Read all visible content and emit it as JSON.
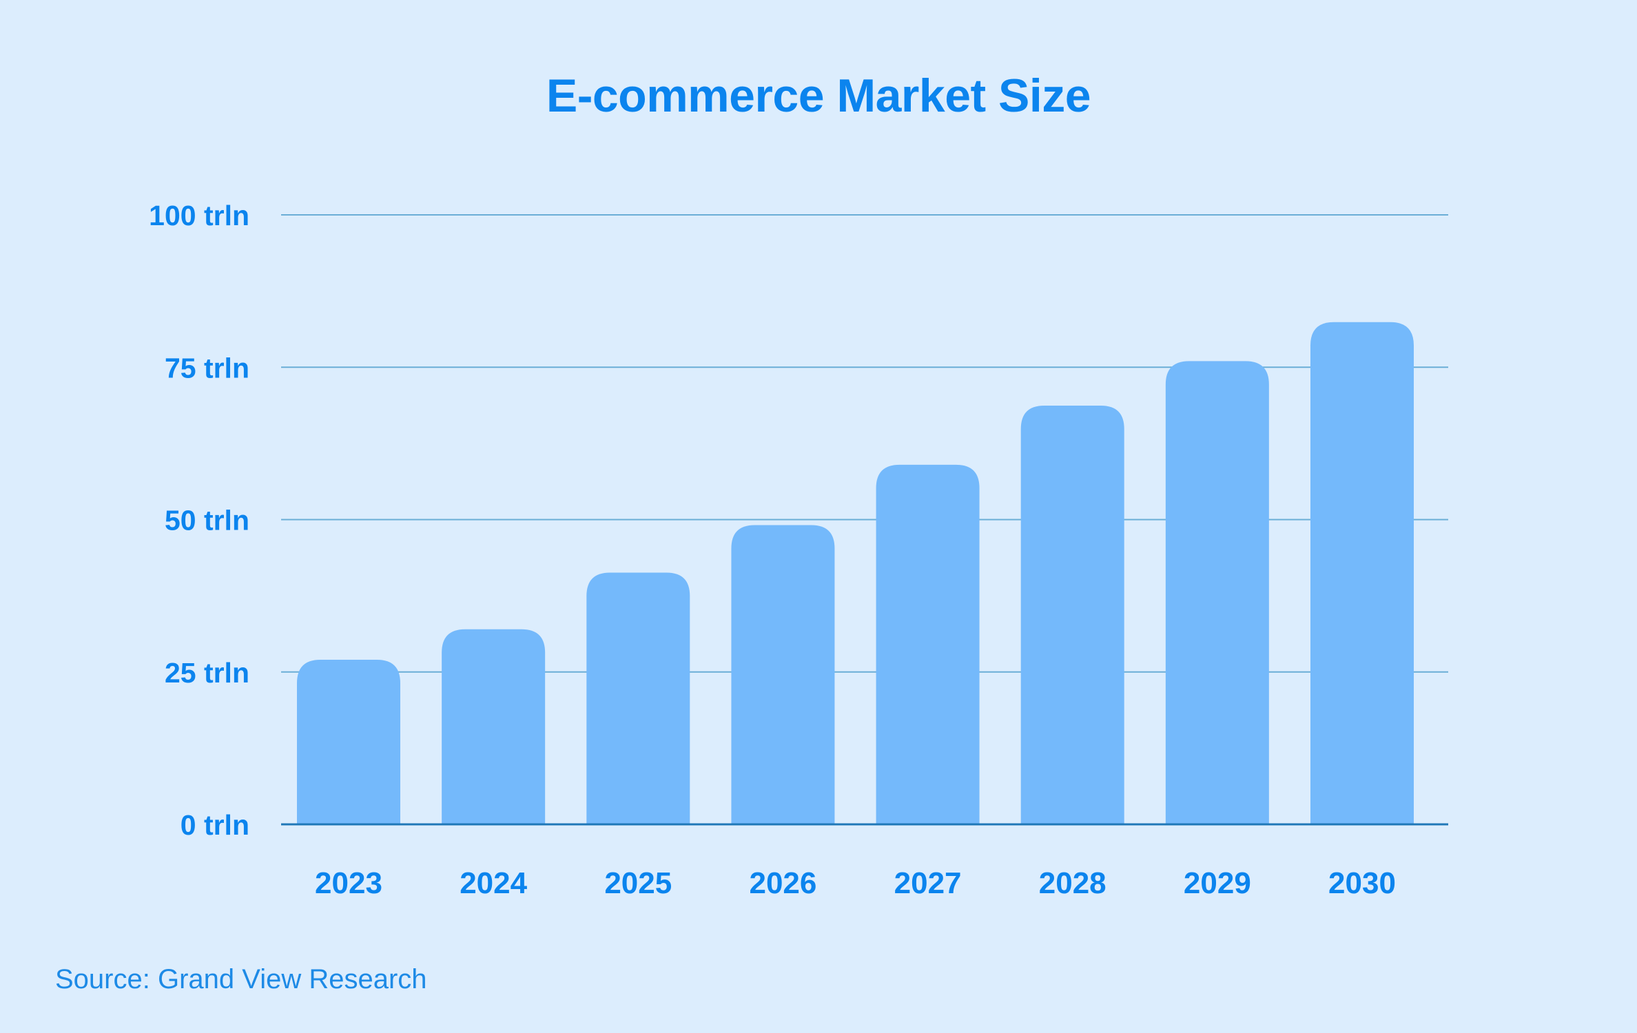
{
  "colors": {
    "background": "#dcedfd",
    "accent": "#0b84ee",
    "bar": "#74b9fb",
    "gridline": "#6aaed6",
    "baseline": "#1f78b8"
  },
  "chart_data": {
    "type": "bar",
    "title": "E-commerce Market Size",
    "xlabel": "",
    "ylabel": "",
    "categories": [
      "2023",
      "2024",
      "2025",
      "2026",
      "2027",
      "2028",
      "2029",
      "2030"
    ],
    "values": [
      27,
      32,
      41.3,
      49.1,
      59,
      68.7,
      76,
      82.4
    ],
    "ylim": [
      0,
      100
    ],
    "yticks": [
      0,
      25,
      50,
      75,
      100
    ],
    "ytick_labels": [
      "0 trln",
      "25 trln",
      "50 trln",
      "75 trln",
      "100 trln"
    ],
    "grid": true,
    "legend": "none",
    "source": "Source: Grand View Research"
  }
}
